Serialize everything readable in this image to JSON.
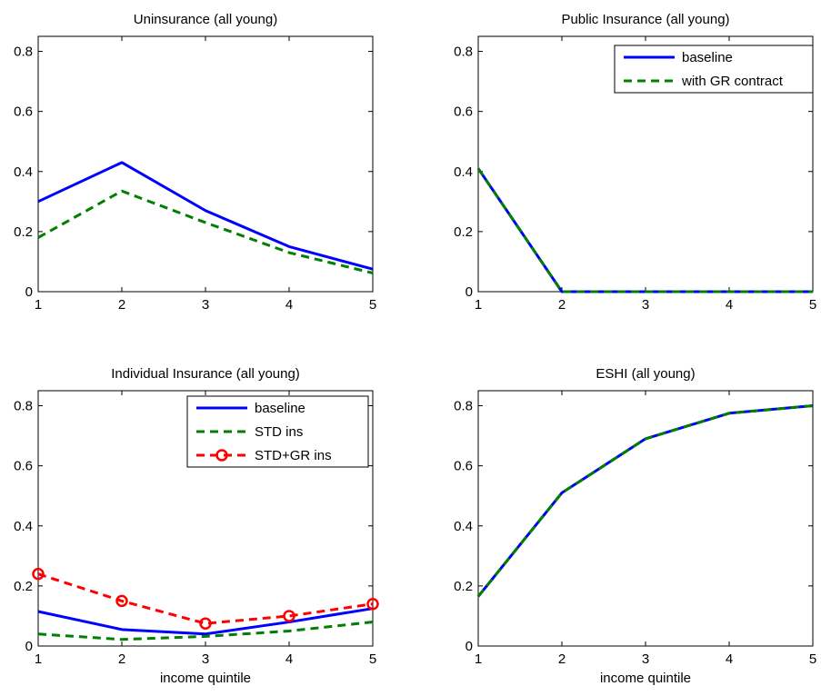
{
  "colors": {
    "baseline": "#0000ff",
    "std": "#007f00",
    "stdgr": "#ff0000",
    "axis": "#000000",
    "background": "#ffffff"
  },
  "chart_data": [
    {
      "type": "line",
      "title": "Uninsurance (all young)",
      "xlabel": "",
      "ylabel": "",
      "xlim": [
        1,
        5
      ],
      "ylim": [
        0,
        0.85
      ],
      "x": [
        1,
        2,
        3,
        4,
        5
      ],
      "xticks": [
        "1",
        "2",
        "3",
        "4",
        "5"
      ],
      "yticks": [
        "0",
        "0.2",
        "0.4",
        "0.6",
        "0.8"
      ],
      "grid": false,
      "legend": null,
      "series": [
        {
          "values": [
            0.3,
            0.43,
            0.27,
            0.15,
            0.075
          ],
          "color": "#0000ff",
          "style": "solid"
        },
        {
          "values": [
            0.18,
            0.335,
            0.23,
            0.13,
            0.062
          ],
          "color": "#007f00",
          "style": "dashed"
        }
      ]
    },
    {
      "type": "line",
      "title": "Public Insurance (all young)",
      "xlabel": "",
      "ylabel": "",
      "xlim": [
        1,
        5
      ],
      "ylim": [
        0,
        0.85
      ],
      "x": [
        1,
        2,
        3,
        4,
        5
      ],
      "xticks": [
        "1",
        "2",
        "3",
        "4",
        "5"
      ],
      "yticks": [
        "0",
        "0.2",
        "0.4",
        "0.6",
        "0.8"
      ],
      "grid": false,
      "legend": "top-right",
      "series": [
        {
          "name": "baseline",
          "values": [
            0.41,
            0.0,
            0.0,
            0.0,
            0.0
          ],
          "color": "#0000ff",
          "style": "solid"
        },
        {
          "name": "with GR contract",
          "values": [
            0.41,
            0.0,
            0.0,
            0.0,
            0.0
          ],
          "color": "#007f00",
          "style": "dashed"
        }
      ]
    },
    {
      "type": "line",
      "title": "Individual Insurance (all young)",
      "xlabel": "income quintile",
      "ylabel": "",
      "xlim": [
        1,
        5
      ],
      "ylim": [
        0,
        0.85
      ],
      "x": [
        1,
        2,
        3,
        4,
        5
      ],
      "xticks": [
        "1",
        "2",
        "3",
        "4",
        "5"
      ],
      "yticks": [
        "0",
        "0.2",
        "0.4",
        "0.6",
        "0.8"
      ],
      "grid": false,
      "legend": "top-right",
      "series": [
        {
          "name": "baseline",
          "values": [
            0.115,
            0.055,
            0.04,
            0.08,
            0.125
          ],
          "color": "#0000ff",
          "style": "solid"
        },
        {
          "name": "STD ins",
          "values": [
            0.04,
            0.022,
            0.032,
            0.05,
            0.08
          ],
          "color": "#007f00",
          "style": "dashed"
        },
        {
          "name": "STD+GR ins",
          "values": [
            0.24,
            0.15,
            0.075,
            0.1,
            0.14
          ],
          "color": "#ff0000",
          "style": "dashed",
          "marker": "circle"
        }
      ]
    },
    {
      "type": "line",
      "title": "ESHI (all young)",
      "xlabel": "income quintile",
      "ylabel": "",
      "xlim": [
        1,
        5
      ],
      "ylim": [
        0,
        0.85
      ],
      "x": [
        1,
        2,
        3,
        4,
        5
      ],
      "xticks": [
        "1",
        "2",
        "3",
        "4",
        "5"
      ],
      "yticks": [
        "0",
        "0.2",
        "0.4",
        "0.6",
        "0.8"
      ],
      "grid": false,
      "legend": null,
      "series": [
        {
          "values": [
            0.165,
            0.51,
            0.69,
            0.775,
            0.8
          ],
          "color": "#0000ff",
          "style": "solid"
        },
        {
          "values": [
            0.165,
            0.51,
            0.69,
            0.775,
            0.8
          ],
          "color": "#007f00",
          "style": "dashed"
        }
      ]
    }
  ]
}
